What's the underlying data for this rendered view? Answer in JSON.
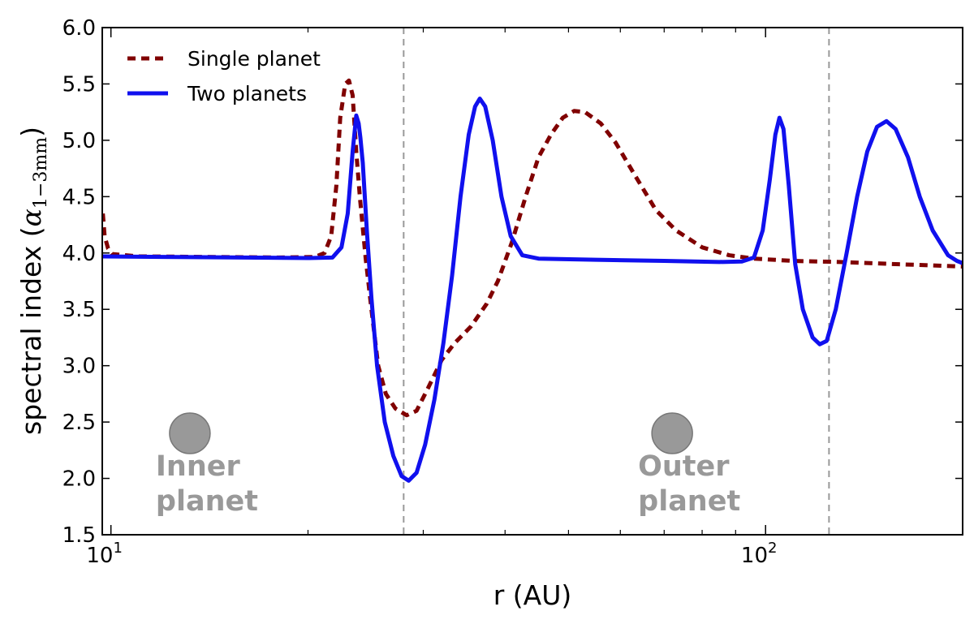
{
  "chart_data": {
    "type": "line",
    "xscale": "log",
    "xlim": [
      9.7,
      200
    ],
    "ylim": [
      1.5,
      6.0
    ],
    "xlabel": "r (AU)",
    "ylabel_main": "spectral index (",
    "ylabel_symbol": "α",
    "ylabel_subscript": "1−3mm",
    "ylabel_close": ")",
    "yticks": [
      1.5,
      2.0,
      2.5,
      3.0,
      3.5,
      4.0,
      4.5,
      5.0,
      5.5,
      6.0
    ],
    "ytick_labels": [
      "1.5",
      "2.0",
      "2.5",
      "3.0",
      "3.5",
      "4.0",
      "4.5",
      "5.0",
      "5.5",
      "6.0"
    ],
    "xticks_major": [
      {
        "value": 10,
        "base": "10",
        "exp": "1"
      },
      {
        "value": 100,
        "base": "10",
        "exp": "2"
      }
    ],
    "xticks_minor": [
      20,
      30,
      40,
      50,
      60,
      70,
      80,
      90,
      200
    ],
    "grid": false,
    "legend_position": "top-left",
    "vlines": [
      {
        "x": 28,
        "color": "#999999",
        "style": "dashed"
      },
      {
        "x": 125,
        "color": "#999999",
        "style": "dashed"
      }
    ],
    "annotations": [
      {
        "x": 13.2,
        "y": 2.4,
        "line1": "Inner",
        "line2": "planet",
        "color": "#999999"
      },
      {
        "x": 72,
        "y": 2.4,
        "line1": "Outer",
        "line2": "planet",
        "color": "#999999"
      }
    ],
    "series": [
      {
        "name": "Single planet",
        "color": "#800000",
        "style": "dashed",
        "points": [
          [
            9.72,
            4.35
          ],
          [
            9.78,
            4.15
          ],
          [
            9.9,
            4.04
          ],
          [
            10.05,
            3.99
          ],
          [
            11,
            3.97
          ],
          [
            14,
            3.965
          ],
          [
            18,
            3.96
          ],
          [
            20.5,
            3.965
          ],
          [
            21.2,
            4.0
          ],
          [
            21.7,
            4.15
          ],
          [
            22.1,
            4.6
          ],
          [
            22.4,
            5.2
          ],
          [
            22.8,
            5.5
          ],
          [
            23.1,
            5.53
          ],
          [
            23.4,
            5.4
          ],
          [
            23.7,
            4.9
          ],
          [
            24.0,
            4.5
          ],
          [
            24.5,
            3.95
          ],
          [
            25.0,
            3.5
          ],
          [
            25.6,
            3.0
          ],
          [
            26.3,
            2.75
          ],
          [
            27.2,
            2.62
          ],
          [
            28.3,
            2.56
          ],
          [
            29.3,
            2.6
          ],
          [
            30.5,
            2.8
          ],
          [
            32,
            3.05
          ],
          [
            33.5,
            3.2
          ],
          [
            35.5,
            3.35
          ],
          [
            37.5,
            3.55
          ],
          [
            39,
            3.75
          ],
          [
            41,
            4.1
          ],
          [
            43,
            4.5
          ],
          [
            45,
            4.85
          ],
          [
            47,
            5.05
          ],
          [
            49,
            5.2
          ],
          [
            51,
            5.26
          ],
          [
            53,
            5.25
          ],
          [
            56,
            5.15
          ],
          [
            59,
            4.98
          ],
          [
            63,
            4.7
          ],
          [
            68,
            4.38
          ],
          [
            73,
            4.2
          ],
          [
            80,
            4.05
          ],
          [
            88,
            3.98
          ],
          [
            96,
            3.95
          ],
          [
            110,
            3.93
          ],
          [
            130,
            3.92
          ],
          [
            160,
            3.9
          ],
          [
            200,
            3.88
          ]
        ]
      },
      {
        "name": "Two planets",
        "color": "#1010ee",
        "style": "solid",
        "points": [
          [
            9.7,
            3.97
          ],
          [
            12,
            3.965
          ],
          [
            16,
            3.96
          ],
          [
            20,
            3.955
          ],
          [
            21.8,
            3.96
          ],
          [
            22.5,
            4.05
          ],
          [
            23.0,
            4.35
          ],
          [
            23.4,
            4.9
          ],
          [
            23.7,
            5.22
          ],
          [
            23.9,
            5.15
          ],
          [
            24.05,
            5.02
          ],
          [
            24.25,
            4.8
          ],
          [
            24.6,
            4.2
          ],
          [
            25.0,
            3.6
          ],
          [
            25.5,
            3.0
          ],
          [
            26.2,
            2.5
          ],
          [
            27.0,
            2.2
          ],
          [
            27.8,
            2.02
          ],
          [
            28.5,
            1.98
          ],
          [
            29.3,
            2.05
          ],
          [
            30.2,
            2.3
          ],
          [
            31.2,
            2.7
          ],
          [
            32.2,
            3.2
          ],
          [
            33.2,
            3.8
          ],
          [
            34.2,
            4.5
          ],
          [
            35.2,
            5.05
          ],
          [
            36.0,
            5.3
          ],
          [
            36.6,
            5.37
          ],
          [
            37.3,
            5.3
          ],
          [
            38.3,
            5.0
          ],
          [
            39.5,
            4.5
          ],
          [
            40.8,
            4.15
          ],
          [
            42.5,
            3.98
          ],
          [
            45,
            3.95
          ],
          [
            55,
            3.94
          ],
          [
            70,
            3.93
          ],
          [
            85,
            3.92
          ],
          [
            92,
            3.925
          ],
          [
            96,
            3.96
          ],
          [
            99,
            4.2
          ],
          [
            101.5,
            4.65
          ],
          [
            103.5,
            5.05
          ],
          [
            105,
            5.2
          ],
          [
            106.5,
            5.1
          ],
          [
            108.5,
            4.6
          ],
          [
            111,
            3.9
          ],
          [
            114,
            3.5
          ],
          [
            118,
            3.25
          ],
          [
            121,
            3.19
          ],
          [
            124,
            3.22
          ],
          [
            128,
            3.5
          ],
          [
            133,
            4.0
          ],
          [
            138,
            4.5
          ],
          [
            143,
            4.9
          ],
          [
            148,
            5.12
          ],
          [
            153,
            5.17
          ],
          [
            158,
            5.1
          ],
          [
            165,
            4.85
          ],
          [
            172,
            4.5
          ],
          [
            180,
            4.2
          ],
          [
            190,
            3.98
          ],
          [
            196,
            3.93
          ],
          [
            200,
            3.91
          ]
        ]
      }
    ]
  }
}
